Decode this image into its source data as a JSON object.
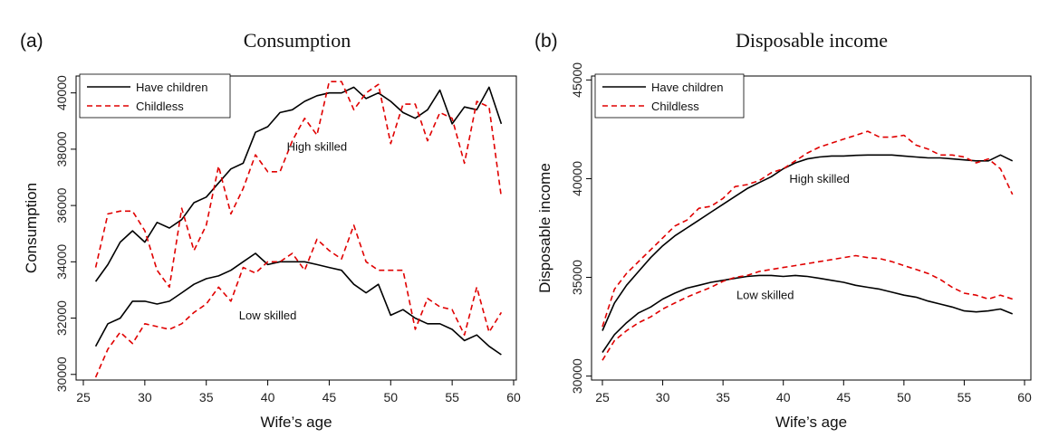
{
  "chart_data": [
    {
      "type": "line",
      "panel_letter": "(a)",
      "title": "Consumption",
      "xlabel": "Wife’s age",
      "ylabel": "Consumption",
      "xlim": [
        25,
        60
      ],
      "ylim": [
        29800,
        40600
      ],
      "xticks": [
        25,
        30,
        35,
        40,
        45,
        50,
        55,
        60
      ],
      "yticks": [
        30000,
        32000,
        34000,
        36000,
        38000,
        40000
      ],
      "grid": false,
      "legend": {
        "placement": "top-left",
        "entries": [
          {
            "label": "Have children",
            "color": "#000000",
            "dash": "solid"
          },
          {
            "label": "Childless",
            "color": "#e00000",
            "dash": "dashed"
          }
        ]
      },
      "annotations": [
        {
          "text": "High skilled",
          "x": 44,
          "y": 37950
        },
        {
          "text": "Low skilled",
          "x": 40,
          "y": 31950
        }
      ],
      "x": [
        26,
        27,
        28,
        29,
        30,
        31,
        32,
        33,
        34,
        35,
        36,
        37,
        38,
        39,
        40,
        41,
        42,
        43,
        44,
        45,
        46,
        47,
        48,
        49,
        50,
        51,
        52,
        53,
        54,
        55,
        56,
        57,
        58,
        59
      ],
      "series": [
        {
          "name": "Have children",
          "group": "High skilled",
          "color": "#000000",
          "dash": "solid",
          "values": [
            33300,
            33900,
            34700,
            35100,
            34700,
            35400,
            35200,
            35500,
            36100,
            36300,
            36800,
            37300,
            37500,
            38600,
            38800,
            39300,
            39400,
            39700,
            39900,
            40000,
            40000,
            40200,
            39800,
            40000,
            39700,
            39300,
            39100,
            39400,
            40100,
            38900,
            39500,
            39400,
            40200,
            38900
          ]
        },
        {
          "name": "Childless",
          "group": "High skilled",
          "color": "#e00000",
          "dash": "dashed",
          "values": [
            33800,
            35700,
            35800,
            35800,
            35100,
            33700,
            33100,
            35900,
            34400,
            35300,
            37400,
            35700,
            36600,
            37800,
            37200,
            37200,
            38300,
            39100,
            38500,
            40400,
            40400,
            39400,
            40000,
            40300,
            38200,
            39600,
            39600,
            38300,
            39300,
            39100,
            37500,
            39700,
            39500,
            36300
          ]
        },
        {
          "name": "Have children",
          "group": "Low skilled",
          "color": "#000000",
          "dash": "solid",
          "values": [
            31000,
            31800,
            32000,
            32600,
            32600,
            32500,
            32600,
            32900,
            33200,
            33400,
            33500,
            33700,
            34000,
            34300,
            33900,
            34000,
            34000,
            34000,
            33900,
            33800,
            33700,
            33200,
            32900,
            33200,
            32100,
            32300,
            32000,
            31800,
            31800,
            31600,
            31200,
            31400,
            31000,
            30700
          ]
        },
        {
          "name": "Childless",
          "group": "Low skilled",
          "color": "#e00000",
          "dash": "dashed",
          "values": [
            29900,
            30900,
            31500,
            31100,
            31800,
            31700,
            31600,
            31800,
            32200,
            32500,
            33100,
            32600,
            33800,
            33600,
            34000,
            34000,
            34300,
            33700,
            34800,
            34400,
            34100,
            35300,
            34000,
            33700,
            33700,
            33700,
            31600,
            32700,
            32400,
            32300,
            31400,
            33100,
            31500,
            32200
          ]
        }
      ]
    },
    {
      "type": "line",
      "panel_letter": "(b)",
      "title": "Disposable income",
      "xlabel": "Wife’s age",
      "ylabel": "Disposable income",
      "xlim": [
        25,
        60
      ],
      "ylim": [
        29800,
        45200
      ],
      "xticks": [
        25,
        30,
        35,
        40,
        45,
        50,
        55,
        60
      ],
      "yticks": [
        30000,
        35000,
        40000,
        45000
      ],
      "grid": false,
      "legend": {
        "placement": "top-left",
        "entries": [
          {
            "label": "Have children",
            "color": "#000000",
            "dash": "solid"
          },
          {
            "label": "Childless",
            "color": "#e00000",
            "dash": "dashed"
          }
        ]
      },
      "annotations": [
        {
          "text": "High skilled",
          "x": 43,
          "y": 39800
        },
        {
          "text": "Low skilled",
          "x": 38.5,
          "y": 33900
        }
      ],
      "x": [
        25,
        26,
        27,
        28,
        29,
        30,
        31,
        32,
        33,
        34,
        35,
        36,
        37,
        38,
        39,
        40,
        41,
        42,
        43,
        44,
        45,
        46,
        47,
        48,
        49,
        50,
        51,
        52,
        53,
        54,
        55,
        56,
        57,
        58,
        59
      ],
      "series": [
        {
          "name": "Have children",
          "group": "High skilled",
          "color": "#000000",
          "dash": "solid",
          "values": [
            32300,
            33700,
            34600,
            35300,
            36000,
            36600,
            37100,
            37500,
            37900,
            38300,
            38700,
            39100,
            39500,
            39800,
            40100,
            40500,
            40800,
            41000,
            41100,
            41150,
            41150,
            41180,
            41200,
            41200,
            41200,
            41150,
            41100,
            41050,
            41050,
            41000,
            40950,
            40900,
            40900,
            41200,
            40900
          ]
        },
        {
          "name": "Childless",
          "group": "High skilled",
          "color": "#e00000",
          "dash": "dashed",
          "values": [
            32500,
            34400,
            35200,
            35800,
            36400,
            37000,
            37600,
            37900,
            38500,
            38600,
            39000,
            39600,
            39700,
            39900,
            40300,
            40500,
            40900,
            41300,
            41600,
            41800,
            42000,
            42200,
            42400,
            42100,
            42100,
            42200,
            41700,
            41500,
            41200,
            41200,
            41100,
            40800,
            41000,
            40500,
            39200
          ]
        },
        {
          "name": "Have children",
          "group": "Low skilled",
          "color": "#000000",
          "dash": "solid",
          "values": [
            31200,
            32100,
            32700,
            33200,
            33500,
            33900,
            34200,
            34450,
            34600,
            34750,
            34850,
            34950,
            35050,
            35100,
            35100,
            35050,
            35100,
            35050,
            34950,
            34850,
            34750,
            34600,
            34500,
            34400,
            34250,
            34100,
            34000,
            33800,
            33650,
            33500,
            33300,
            33250,
            33300,
            33400,
            33150
          ]
        },
        {
          "name": "Childless",
          "group": "Low skilled",
          "color": "#e00000",
          "dash": "dashed",
          "values": [
            30800,
            31800,
            32300,
            32700,
            33000,
            33400,
            33700,
            34000,
            34250,
            34500,
            34800,
            35000,
            35100,
            35300,
            35400,
            35500,
            35600,
            35700,
            35800,
            35900,
            36000,
            36100,
            36000,
            35950,
            35800,
            35600,
            35400,
            35200,
            34900,
            34500,
            34200,
            34100,
            33900,
            34100,
            33900
          ]
        }
      ]
    }
  ]
}
